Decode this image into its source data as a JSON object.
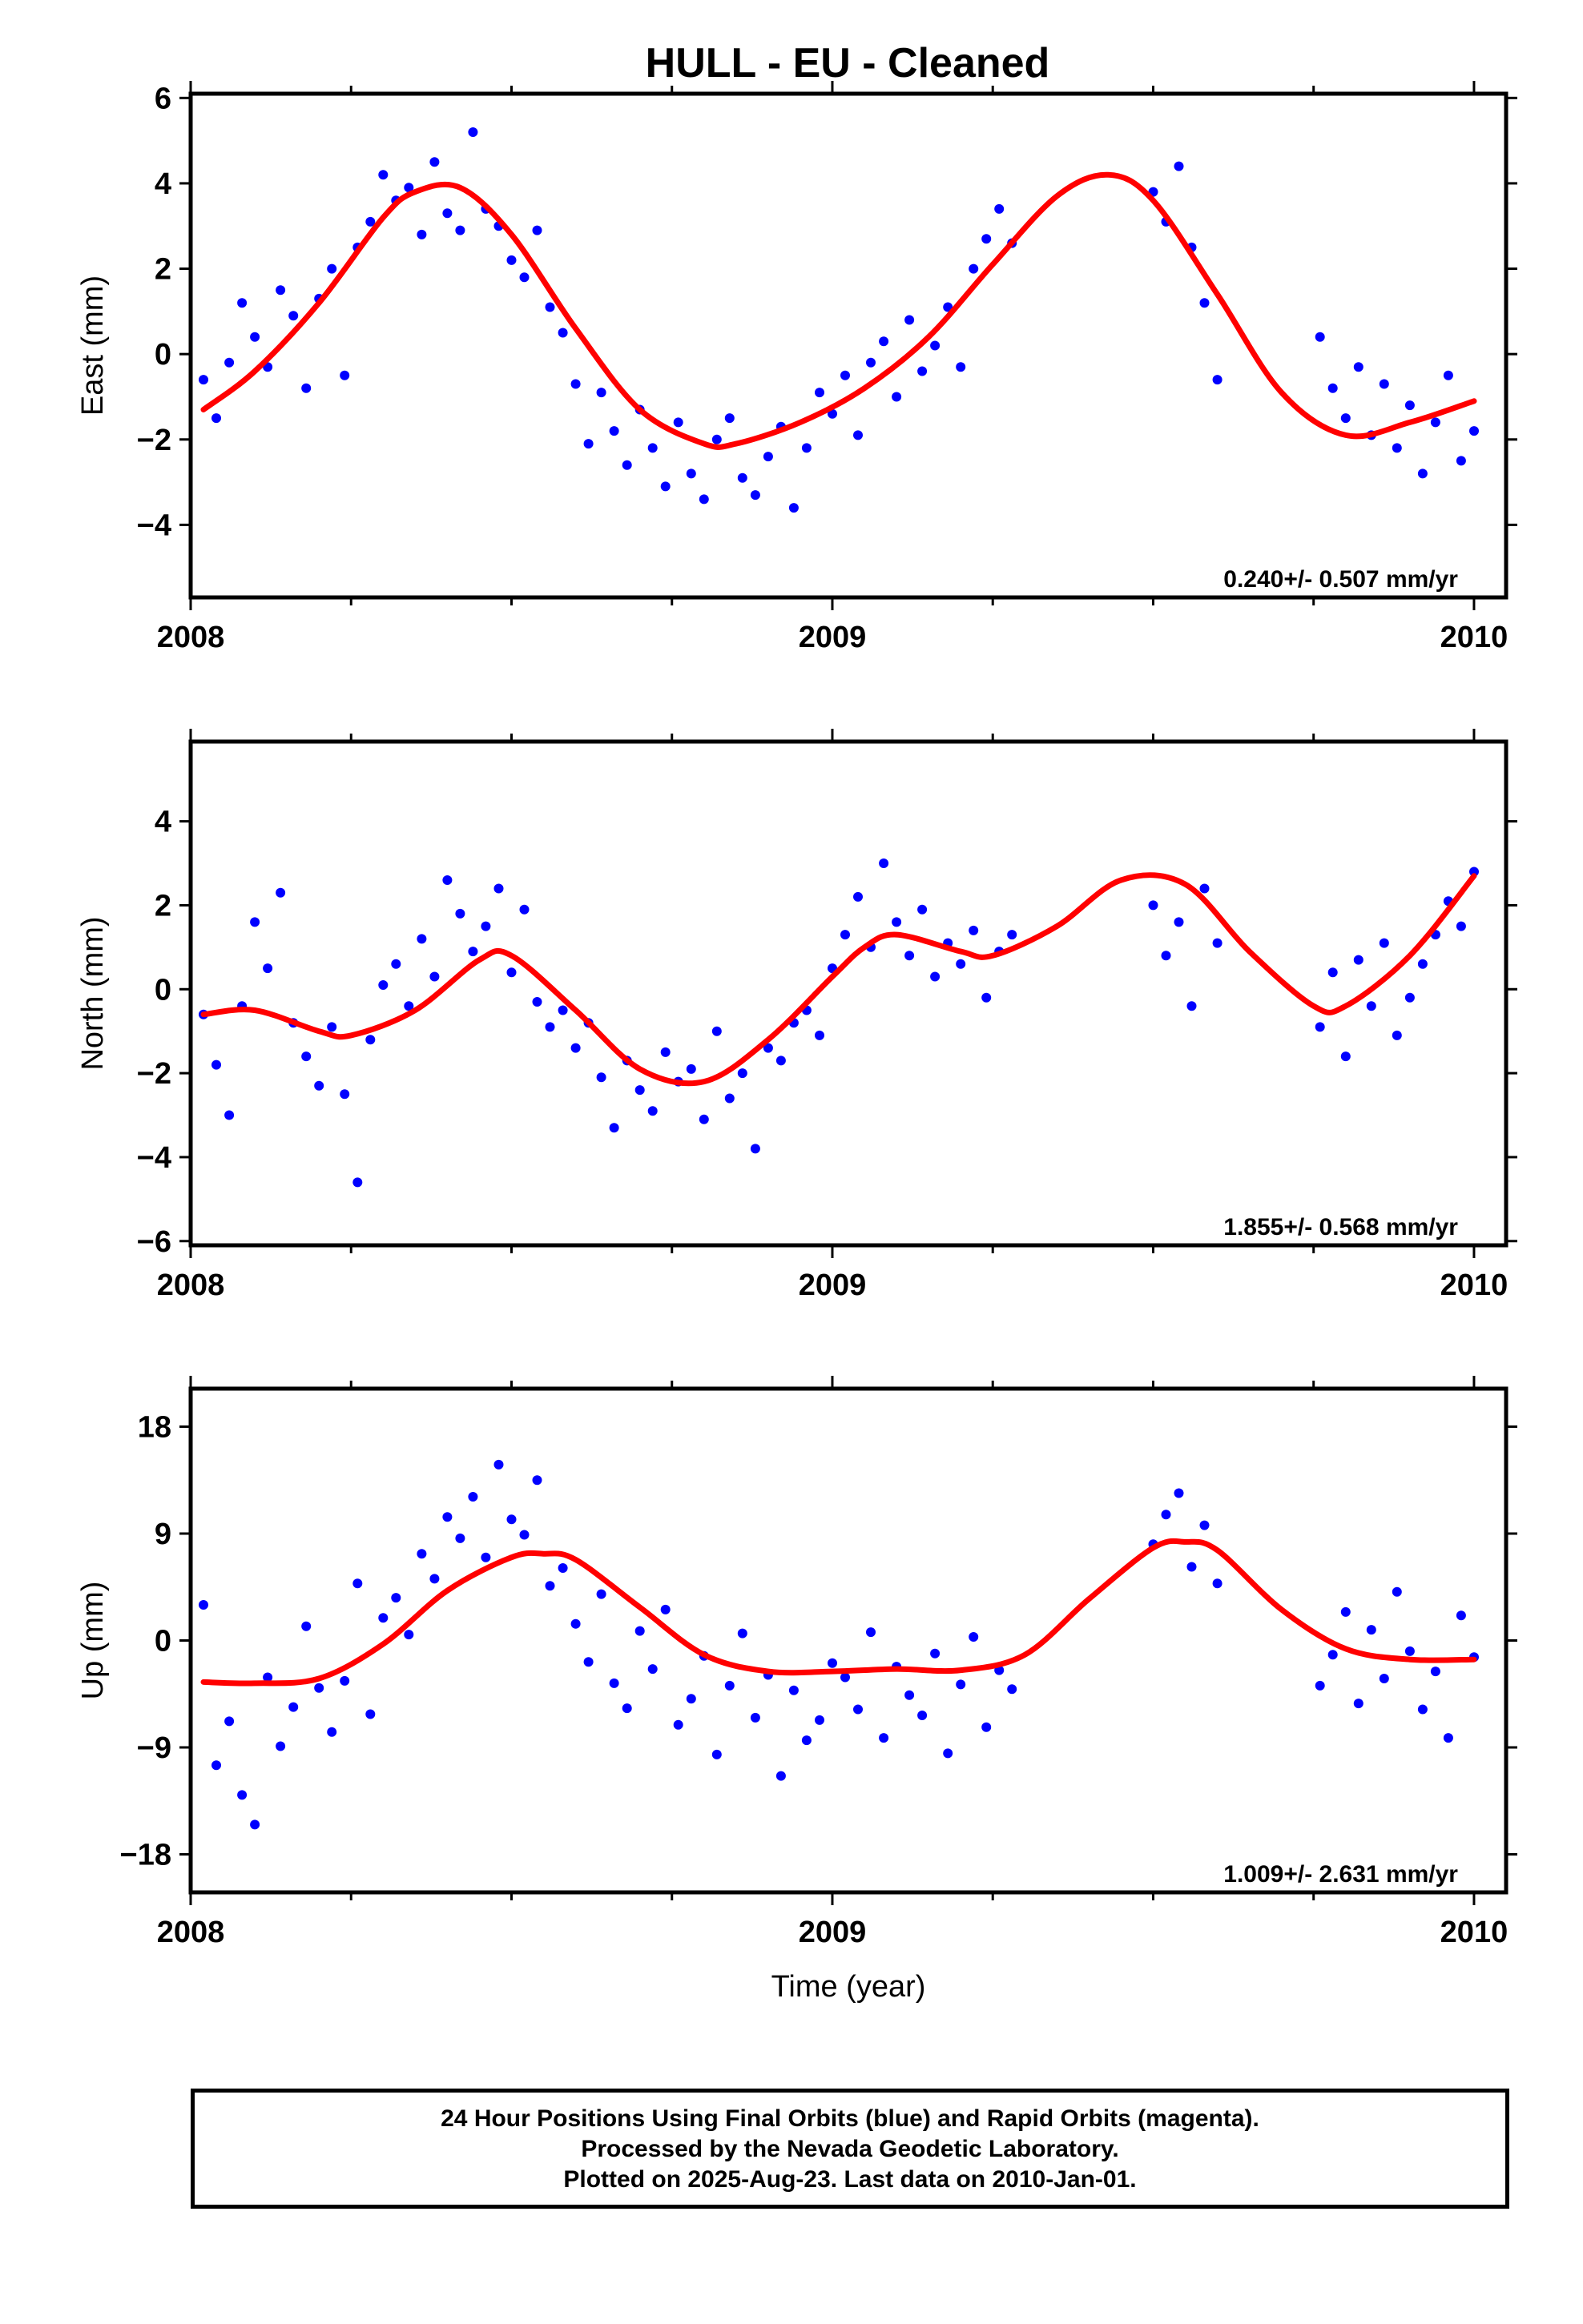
{
  "title": "HULL  - EU - Cleaned",
  "footer": {
    "line1": "24 Hour Positions Using Final Orbits (blue) and Rapid Orbits (magenta).",
    "line2": "Processed by the Nevada Geodetic Laboratory.",
    "line3": "Plotted on 2025-Aug-23. Last data on 2010-Jan-01."
  },
  "colors": {
    "points": "#0000ff",
    "fit": "#ff0000",
    "frame": "#000000"
  },
  "chart_data": [
    {
      "type": "scatter",
      "title": "HULL  - EU - Cleaned",
      "xlabel": "",
      "ylabel": "East (mm)",
      "xlim": [
        2008.0,
        2010.05
      ],
      "ylim": [
        -5.7,
        6.1
      ],
      "xticks": [
        2008,
        2009,
        2010
      ],
      "xtick_labels": [
        "2008",
        "2009",
        "2010"
      ],
      "yticks": [
        -4,
        -2,
        0,
        2,
        4,
        6
      ],
      "ytick_labels": [
        "−4",
        "−2",
        "0",
        "2",
        "4",
        "6"
      ],
      "rate_label": "0.240+/- 0.507 mm/yr",
      "grid": false,
      "series": [
        {
          "mode": "markers",
          "x": [
            2008.02,
            2008.04,
            2008.06,
            2008.08,
            2008.1,
            2008.12,
            2008.14,
            2008.16,
            2008.18,
            2008.2,
            2008.22,
            2008.24,
            2008.26,
            2008.28,
            2008.3,
            2008.32,
            2008.34,
            2008.36,
            2008.38,
            2008.4,
            2008.42,
            2008.44,
            2008.46,
            2008.48,
            2008.5,
            2008.52,
            2008.54,
            2008.56,
            2008.58,
            2008.6,
            2008.62,
            2008.64,
            2008.66,
            2008.68,
            2008.7,
            2008.72,
            2008.74,
            2008.76,
            2008.78,
            2008.8,
            2008.82,
            2008.84,
            2008.86,
            2008.88,
            2008.9,
            2008.92,
            2008.94,
            2008.96,
            2008.98,
            2009.0,
            2009.02,
            2009.04,
            2009.06,
            2009.08,
            2009.1,
            2009.12,
            2009.14,
            2009.16,
            2009.18,
            2009.2,
            2009.22,
            2009.24,
            2009.26,
            2009.28,
            2009.5,
            2009.52,
            2009.54,
            2009.56,
            2009.58,
            2009.6,
            2009.76,
            2009.78,
            2009.8,
            2009.82,
            2009.84,
            2009.86,
            2009.88,
            2009.9,
            2009.92,
            2009.94,
            2009.96,
            2009.98,
            2010.0
          ],
          "y": [
            -0.6,
            -1.5,
            -0.2,
            1.2,
            0.4,
            -0.3,
            1.5,
            0.9,
            -0.8,
            1.3,
            2.0,
            -0.5,
            2.5,
            3.1,
            4.2,
            3.6,
            3.9,
            2.8,
            4.5,
            3.3,
            2.9,
            5.2,
            3.4,
            3.0,
            2.2,
            1.8,
            2.9,
            1.1,
            0.5,
            -0.7,
            -2.1,
            -0.9,
            -1.8,
            -2.6,
            -1.3,
            -2.2,
            -3.1,
            -1.6,
            -2.8,
            -3.4,
            -2.0,
            -1.5,
            -2.9,
            -3.3,
            -2.4,
            -1.7,
            -3.6,
            -2.2,
            -0.9,
            -1.4,
            -0.5,
            -1.9,
            -0.2,
            0.3,
            -1.0,
            0.8,
            -0.4,
            0.2,
            1.1,
            -0.3,
            2.0,
            2.7,
            3.4,
            2.6,
            3.8,
            3.1,
            4.4,
            2.5,
            1.2,
            -0.6,
            0.4,
            -0.8,
            -1.5,
            -0.3,
            -1.9,
            -0.7,
            -2.2,
            -1.2,
            -2.8,
            -1.6,
            -0.5,
            -2.5,
            -1.8
          ]
        },
        {
          "mode": "line",
          "x": [
            2008.02,
            2008.1,
            2008.2,
            2008.3,
            2008.35,
            2008.42,
            2008.5,
            2008.6,
            2008.7,
            2008.8,
            2008.85,
            2008.95,
            2009.05,
            2009.15,
            2009.25,
            2009.35,
            2009.43,
            2009.5,
            2009.6,
            2009.7,
            2009.8,
            2009.9,
            2010.0
          ],
          "y": [
            -1.3,
            -0.4,
            1.2,
            3.2,
            3.8,
            3.9,
            2.8,
            0.6,
            -1.3,
            -2.1,
            -2.1,
            -1.6,
            -0.8,
            0.4,
            2.1,
            3.7,
            4.2,
            3.6,
            1.4,
            -0.9,
            -1.9,
            -1.6,
            -1.1
          ]
        }
      ]
    },
    {
      "type": "scatter",
      "xlabel": "",
      "ylabel": "North (mm)",
      "xlim": [
        2008.0,
        2010.05
      ],
      "ylim": [
        -6.1,
        5.9
      ],
      "xticks": [
        2008,
        2009,
        2010
      ],
      "xtick_labels": [
        "2008",
        "2009",
        "2010"
      ],
      "yticks": [
        -6,
        -4,
        -2,
        0,
        2,
        4
      ],
      "ytick_labels": [
        "−6",
        "−4",
        "−2",
        "0",
        "2",
        "4"
      ],
      "rate_label": "1.855+/- 0.568 mm/yr",
      "grid": false,
      "series": [
        {
          "mode": "markers",
          "x": [
            2008.02,
            2008.04,
            2008.06,
            2008.08,
            2008.1,
            2008.12,
            2008.14,
            2008.16,
            2008.18,
            2008.2,
            2008.22,
            2008.24,
            2008.26,
            2008.28,
            2008.3,
            2008.32,
            2008.34,
            2008.36,
            2008.38,
            2008.4,
            2008.42,
            2008.44,
            2008.46,
            2008.48,
            2008.5,
            2008.52,
            2008.54,
            2008.56,
            2008.58,
            2008.6,
            2008.62,
            2008.64,
            2008.66,
            2008.68,
            2008.7,
            2008.72,
            2008.74,
            2008.76,
            2008.78,
            2008.8,
            2008.82,
            2008.84,
            2008.86,
            2008.88,
            2008.9,
            2008.92,
            2008.94,
            2008.96,
            2008.98,
            2009.0,
            2009.02,
            2009.04,
            2009.06,
            2009.08,
            2009.1,
            2009.12,
            2009.14,
            2009.16,
            2009.18,
            2009.2,
            2009.22,
            2009.24,
            2009.26,
            2009.28,
            2009.5,
            2009.52,
            2009.54,
            2009.56,
            2009.58,
            2009.6,
            2009.76,
            2009.78,
            2009.8,
            2009.82,
            2009.84,
            2009.86,
            2009.88,
            2009.9,
            2009.92,
            2009.94,
            2009.96,
            2009.98,
            2010.0
          ],
          "y": [
            -0.6,
            -1.8,
            -3.0,
            -0.4,
            1.6,
            0.5,
            2.3,
            -0.8,
            -1.6,
            -2.3,
            -0.9,
            -2.5,
            -4.6,
            -1.2,
            0.1,
            0.6,
            -0.4,
            1.2,
            0.3,
            2.6,
            1.8,
            0.9,
            1.5,
            2.4,
            0.4,
            1.9,
            -0.3,
            -0.9,
            -0.5,
            -1.4,
            -0.8,
            -2.1,
            -3.3,
            -1.7,
            -2.4,
            -2.9,
            -1.5,
            -2.2,
            -1.9,
            -3.1,
            -1.0,
            -2.6,
            -2.0,
            -3.8,
            -1.4,
            -1.7,
            -0.8,
            -0.5,
            -1.1,
            0.5,
            1.3,
            2.2,
            1.0,
            3.0,
            1.6,
            0.8,
            1.9,
            0.3,
            1.1,
            0.6,
            1.4,
            -0.2,
            0.9,
            1.3,
            2.0,
            0.8,
            1.6,
            -0.4,
            2.4,
            1.1,
            -0.9,
            0.4,
            -1.6,
            0.7,
            -0.4,
            1.1,
            -1.1,
            -0.2,
            0.6,
            1.3,
            2.1,
            1.5,
            2.8
          ]
        },
        {
          "mode": "line",
          "x": [
            2008.02,
            2008.1,
            2008.2,
            2008.25,
            2008.35,
            2008.45,
            2008.5,
            2008.6,
            2008.7,
            2008.8,
            2008.9,
            2009.0,
            2009.05,
            2009.1,
            2009.2,
            2009.25,
            2009.35,
            2009.45,
            2009.55,
            2009.65,
            2009.75,
            2009.8,
            2009.9,
            2010.0
          ],
          "y": [
            -0.6,
            -0.5,
            -1.0,
            -1.1,
            -0.5,
            0.7,
            0.8,
            -0.5,
            -1.9,
            -2.2,
            -1.2,
            0.3,
            1.0,
            1.3,
            0.9,
            0.8,
            1.5,
            2.6,
            2.5,
            0.9,
            -0.4,
            -0.4,
            0.8,
            2.7
          ]
        }
      ]
    },
    {
      "type": "scatter",
      "xlabel": "Time (year)",
      "ylabel": "Up (mm)",
      "xlim": [
        2008.0,
        2010.05
      ],
      "ylim": [
        -21.2,
        21.2
      ],
      "xticks": [
        2008,
        2009,
        2010
      ],
      "xtick_labels": [
        "2008",
        "2009",
        "2010"
      ],
      "yticks": [
        -18,
        -9,
        0,
        9,
        18
      ],
      "ytick_labels": [
        "−18",
        "−9",
        "0",
        "9",
        "18"
      ],
      "rate_label": "1.009+/- 2.631 mm/yr",
      "grid": false,
      "series": [
        {
          "mode": "markers",
          "x": [
            2008.02,
            2008.04,
            2008.06,
            2008.08,
            2008.1,
            2008.12,
            2008.14,
            2008.16,
            2008.18,
            2008.2,
            2008.22,
            2008.24,
            2008.26,
            2008.28,
            2008.3,
            2008.32,
            2008.34,
            2008.36,
            2008.38,
            2008.4,
            2008.42,
            2008.44,
            2008.46,
            2008.48,
            2008.5,
            2008.52,
            2008.54,
            2008.56,
            2008.58,
            2008.6,
            2008.62,
            2008.64,
            2008.66,
            2008.68,
            2008.7,
            2008.72,
            2008.74,
            2008.76,
            2008.78,
            2008.8,
            2008.82,
            2008.84,
            2008.86,
            2008.88,
            2008.9,
            2008.92,
            2008.94,
            2008.96,
            2008.98,
            2009.0,
            2009.02,
            2009.04,
            2009.06,
            2009.08,
            2009.1,
            2009.12,
            2009.14,
            2009.16,
            2009.18,
            2009.2,
            2009.22,
            2009.24,
            2009.26,
            2009.28,
            2009.5,
            2009.52,
            2009.54,
            2009.56,
            2009.58,
            2009.6,
            2009.76,
            2009.78,
            2009.8,
            2009.82,
            2009.84,
            2009.86,
            2009.88,
            2009.9,
            2009.92,
            2009.94,
            2009.96,
            2009.98,
            2010.0
          ],
          "y": [
            3.0,
            -10.5,
            -6.8,
            -13.0,
            -15.5,
            -3.1,
            -8.9,
            -5.6,
            1.2,
            -4.0,
            -7.7,
            -3.4,
            4.8,
            -6.2,
            1.9,
            3.6,
            0.5,
            7.3,
            5.2,
            10.4,
            8.6,
            12.1,
            7.0,
            14.8,
            10.2,
            8.9,
            13.5,
            4.6,
            6.1,
            1.4,
            -1.8,
            3.9,
            -3.6,
            -5.7,
            0.8,
            -2.4,
            2.6,
            -7.1,
            -4.9,
            -1.3,
            -9.6,
            -3.8,
            0.6,
            -6.5,
            -2.9,
            -11.4,
            -4.2,
            -8.4,
            -6.7,
            -1.9,
            -3.1,
            -5.8,
            0.7,
            -8.2,
            -2.2,
            -4.6,
            -6.3,
            -1.1,
            -9.5,
            -3.7,
            0.3,
            -7.3,
            -2.5,
            -4.1,
            8.1,
            10.6,
            12.4,
            6.2,
            9.7,
            4.8,
            -3.8,
            -1.2,
            2.4,
            -5.3,
            0.9,
            -3.2,
            4.1,
            -0.9,
            -5.8,
            -2.6,
            -8.2,
            2.1,
            -1.4
          ]
        },
        {
          "mode": "line",
          "x": [
            2008.02,
            2008.1,
            2008.2,
            2008.3,
            2008.4,
            2008.5,
            2008.55,
            2008.6,
            2008.7,
            2008.8,
            2008.9,
            2009.0,
            2009.1,
            2009.2,
            2009.3,
            2009.4,
            2009.5,
            2009.55,
            2009.6,
            2009.7,
            2009.8,
            2009.9,
            2010.0
          ],
          "y": [
            -3.5,
            -3.6,
            -3.2,
            -0.3,
            4.2,
            7.0,
            7.3,
            6.8,
            2.8,
            -1.2,
            -2.6,
            -2.6,
            -2.4,
            -2.5,
            -1.2,
            3.5,
            7.8,
            8.3,
            7.6,
            2.6,
            -0.7,
            -1.6,
            -1.6
          ]
        }
      ]
    }
  ]
}
